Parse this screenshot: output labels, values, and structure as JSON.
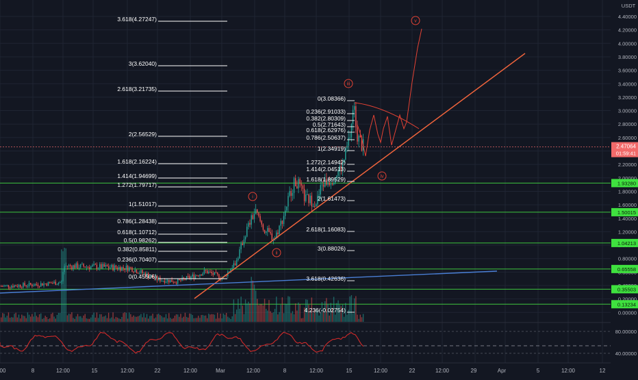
{
  "header": {
    "currency": "USDT"
  },
  "price_axis": {
    "labels": [
      "4.40000",
      "4.20000",
      "4.00000",
      "3.80000",
      "3.60000",
      "3.40000",
      "3.20000",
      "3.00000",
      "2.80000",
      "2.60000",
      "2.40000",
      "2.20000",
      "2.00000",
      "1.80000",
      "1.60000",
      "1.40000",
      "1.20000",
      "1.00000",
      "0.80000",
      "0.60000",
      "0.40000",
      "0.20000",
      "0.00000"
    ],
    "current_price": "2.47064",
    "countdown": "01:59:41",
    "level_badges": [
      "1.93280",
      "1.50015",
      "1.04213",
      "0.65558",
      "0.35503",
      "0.13234"
    ]
  },
  "time_axis": {
    "labels": [
      "00",
      "8",
      "12:00",
      "15",
      "12:00",
      "22",
      "12:00",
      "Mar",
      "12:00",
      "8",
      "12:00",
      "15",
      "12:00",
      "22",
      "12:00",
      "29",
      "Apr",
      "5",
      "12:00",
      "12"
    ]
  },
  "oscillator_axis": {
    "labels": [
      "80.00000",
      "40.00000"
    ]
  },
  "fib_left": [
    "3.618(4.27247)",
    "3(3.62040)",
    "2.618(3.21735)",
    "2(2.56529)",
    "1.618(2.16224)",
    "1.414(1.94699)",
    "1.272(1.79717)",
    "1(1.51017)",
    "0.786(1.28438)",
    "0.618(1.10712)",
    "0.5(0.98262)",
    "0.382(0.85811)",
    "0.236(0.70407)",
    "0(0.45506)"
  ],
  "fib_right": [
    "0(3.08366)",
    "0.236(2.91033)",
    "0.382(2.80309)",
    "0.5(2.71643)",
    "0.618(2.62976)",
    "0.786(2.50637)",
    "1(2.34919)",
    "1.272(2.14942)",
    "1.414(2.04513)",
    "1.618(1.89529)",
    "2(1.61473)",
    "2.618(1.16083)",
    "3(0.88026)",
    "3.618(0.42636)",
    "4.236(-0.02754)"
  ],
  "wave_labels": [
    "i",
    "ii",
    "iii",
    "iv",
    "v"
  ],
  "colors": {
    "background": "#131722",
    "grid": "#1f2433",
    "up": "#26a69a",
    "down": "#ef5350",
    "trendline": "#f0643c",
    "blue_line": "#4a7fd6",
    "support_line": "#3ec63e",
    "support_badge": "#3fe13f",
    "price_badge": "#f26a6a",
    "projection": "#e34234",
    "oscillator": "#d12a2a",
    "fib_text": "#ffffff"
  },
  "chart_data": {
    "type": "candlestick",
    "ylim": [
      -0.1,
      4.5
    ],
    "candles_sample": [
      {
        "x": "Feb 1",
        "close": 0.4
      },
      {
        "x": "Feb 8",
        "close": 0.42
      },
      {
        "x": "Feb 11",
        "close": 0.7
      },
      {
        "x": "Feb 15",
        "close": 0.69
      },
      {
        "x": "Feb 22",
        "close": 0.46
      },
      {
        "x": "Mar 1",
        "close": 0.65
      },
      {
        "x": "Mar 2",
        "close": 1.51
      },
      {
        "x": "Mar 4",
        "close": 1.08
      },
      {
        "x": "Mar 8",
        "close": 1.6
      },
      {
        "x": "Mar 10",
        "close": 1.97
      },
      {
        "x": "Mar 12",
        "close": 1.63
      },
      {
        "x": "Mar 14",
        "close": 2.34
      },
      {
        "x": "Mar 15",
        "close": 3.08
      },
      {
        "x": "Mar 16",
        "close": 2.47
      }
    ],
    "current_price": 2.47064,
    "horizontal_levels": [
      1.9328,
      1.50015,
      1.04213,
      0.65558,
      0.35503,
      0.13234
    ],
    "trendline_main": [
      [
        0.18,
        -0.1
      ],
      [
        5.3,
        3.9
      ]
    ],
    "trendline_blue": [
      [
        0.33,
        0.0
      ],
      [
        0.66,
        0.0
      ]
    ],
    "projected_path": [
      2.3,
      2.75,
      2.1,
      2.85,
      2.2,
      2.6,
      2.3,
      4.3
    ],
    "oscillator_levels": [
      80,
      40
    ]
  }
}
